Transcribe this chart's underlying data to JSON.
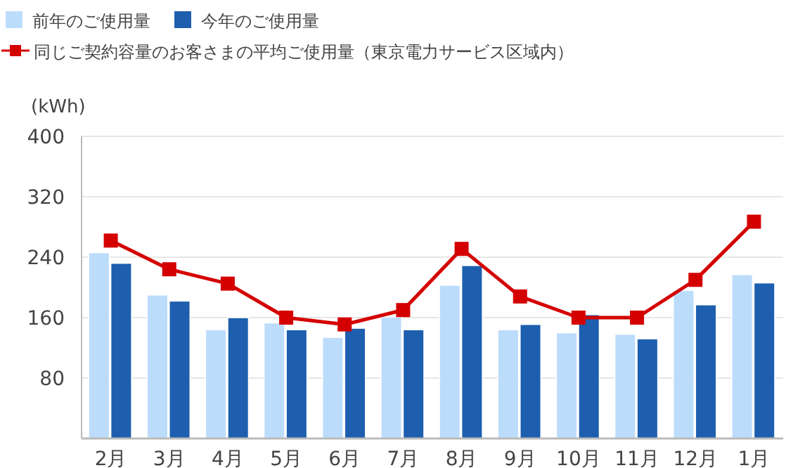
{
  "chart_data": {
    "type": "bar",
    "ylabel": "(kWh)",
    "categories": [
      "2月",
      "3月",
      "4月",
      "5月",
      "6月",
      "7月",
      "8月",
      "9月",
      "10月",
      "11月",
      "12月",
      "1月"
    ],
    "series": [
      {
        "name": "前年のご使用量",
        "color": "#bcdcfb",
        "values": [
          246,
          190,
          144,
          153,
          134,
          161,
          203,
          144,
          140,
          138,
          196,
          217
        ]
      },
      {
        "name": "今年のご使用量",
        "color": "#1d5fae",
        "values": [
          232,
          182,
          160,
          144,
          146,
          144,
          229,
          151,
          164,
          132,
          177,
          206
        ]
      },
      {
        "name": "同じご契約容量のお客さまの平均ご使用量（東京電力サービス区域内）",
        "type": "line",
        "marker": "square",
        "color": "#d40000",
        "values": [
          262,
          224,
          205,
          160,
          151,
          170,
          251,
          188,
          160,
          160,
          210,
          287
        ]
      }
    ],
    "ylim": [
      0,
      400
    ],
    "yticks": [
      {
        "value": 0,
        "label": null
      },
      80,
      160,
      240,
      320,
      400
    ],
    "grid": "y",
    "legend": "top"
  }
}
